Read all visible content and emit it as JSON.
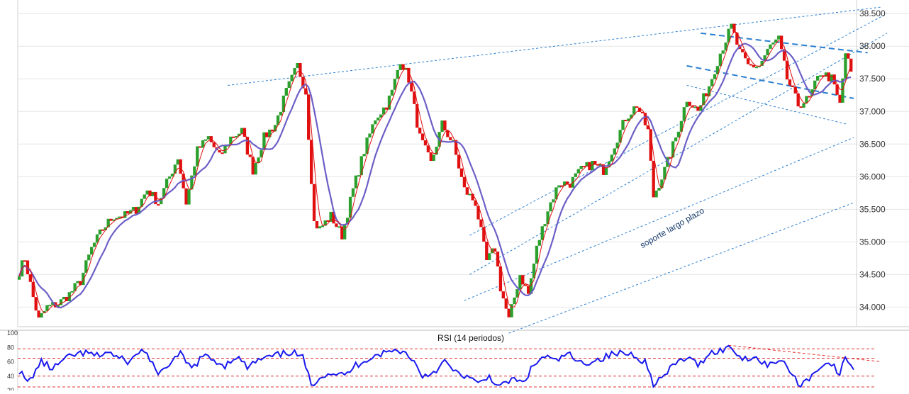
{
  "chart_data": [
    {
      "type": "candlestick",
      "title": "",
      "y_axis": {
        "position": "right",
        "ylim": [
          33.7,
          38.6
        ],
        "tick_labels": [
          "34.000",
          "34.500",
          "35.000",
          "35.500",
          "36.000",
          "36.500",
          "37.000",
          "37.500",
          "38.000",
          "38.500"
        ],
        "tick_values": [
          34.0,
          34.5,
          35.0,
          35.5,
          36.0,
          36.5,
          37.0,
          37.5,
          38.0,
          38.5
        ]
      },
      "grid": "horizontal",
      "price_anchors": [
        {
          "i": 0,
          "c": 34.55
        },
        {
          "i": 2,
          "c": 34.75
        },
        {
          "i": 5,
          "c": 34.15
        },
        {
          "i": 7,
          "c": 33.8
        },
        {
          "i": 10,
          "c": 34.0
        },
        {
          "i": 14,
          "c": 34.05
        },
        {
          "i": 18,
          "c": 34.2
        },
        {
          "i": 22,
          "c": 34.4
        },
        {
          "i": 26,
          "c": 34.9
        },
        {
          "i": 30,
          "c": 35.2
        },
        {
          "i": 34,
          "c": 35.4
        },
        {
          "i": 38,
          "c": 35.4
        },
        {
          "i": 42,
          "c": 35.5
        },
        {
          "i": 46,
          "c": 35.8
        },
        {
          "i": 50,
          "c": 35.6
        },
        {
          "i": 54,
          "c": 36.0
        },
        {
          "i": 57,
          "c": 36.3
        },
        {
          "i": 60,
          "c": 35.6
        },
        {
          "i": 64,
          "c": 36.4
        },
        {
          "i": 68,
          "c": 36.6
        },
        {
          "i": 72,
          "c": 36.3
        },
        {
          "i": 76,
          "c": 36.6
        },
        {
          "i": 80,
          "c": 36.7
        },
        {
          "i": 84,
          "c": 36.1
        },
        {
          "i": 88,
          "c": 36.6
        },
        {
          "i": 92,
          "c": 36.8
        },
        {
          "i": 96,
          "c": 37.3
        },
        {
          "i": 100,
          "c": 37.7
        },
        {
          "i": 103,
          "c": 37.3
        },
        {
          "i": 106,
          "c": 35.3
        },
        {
          "i": 108,
          "c": 35.2
        },
        {
          "i": 112,
          "c": 35.4
        },
        {
          "i": 116,
          "c": 35.1
        },
        {
          "i": 120,
          "c": 35.8
        },
        {
          "i": 124,
          "c": 36.4
        },
        {
          "i": 128,
          "c": 36.9
        },
        {
          "i": 132,
          "c": 37.1
        },
        {
          "i": 134,
          "c": 37.3
        },
        {
          "i": 137,
          "c": 37.8
        },
        {
          "i": 140,
          "c": 37.5
        },
        {
          "i": 144,
          "c": 36.6
        },
        {
          "i": 148,
          "c": 36.2
        },
        {
          "i": 152,
          "c": 36.8
        },
        {
          "i": 156,
          "c": 36.5
        },
        {
          "i": 160,
          "c": 35.8
        },
        {
          "i": 164,
          "c": 35.6
        },
        {
          "i": 168,
          "c": 34.7
        },
        {
          "i": 171,
          "c": 34.9
        },
        {
          "i": 173,
          "c": 34.3
        },
        {
          "i": 176,
          "c": 33.8
        },
        {
          "i": 180,
          "c": 34.5
        },
        {
          "i": 183,
          "c": 34.2
        },
        {
          "i": 186,
          "c": 34.9
        },
        {
          "i": 190,
          "c": 35.5
        },
        {
          "i": 194,
          "c": 35.9
        },
        {
          "i": 198,
          "c": 35.9
        },
        {
          "i": 202,
          "c": 36.1
        },
        {
          "i": 206,
          "c": 36.2
        },
        {
          "i": 210,
          "c": 36.1
        },
        {
          "i": 214,
          "c": 36.5
        },
        {
          "i": 218,
          "c": 36.9
        },
        {
          "i": 222,
          "c": 37.1
        },
        {
          "i": 226,
          "c": 36.7
        },
        {
          "i": 228,
          "c": 35.7
        },
        {
          "i": 232,
          "c": 36.1
        },
        {
          "i": 236,
          "c": 36.6
        },
        {
          "i": 240,
          "c": 37.2
        },
        {
          "i": 244,
          "c": 37.0
        },
        {
          "i": 248,
          "c": 37.4
        },
        {
          "i": 252,
          "c": 37.9
        },
        {
          "i": 256,
          "c": 38.3
        },
        {
          "i": 259,
          "c": 37.9
        },
        {
          "i": 262,
          "c": 37.7
        },
        {
          "i": 266,
          "c": 37.7
        },
        {
          "i": 270,
          "c": 38.0
        },
        {
          "i": 273,
          "c": 38.1
        },
        {
          "i": 276,
          "c": 37.5
        },
        {
          "i": 280,
          "c": 37.1
        },
        {
          "i": 284,
          "c": 37.2
        },
        {
          "i": 288,
          "c": 37.6
        },
        {
          "i": 292,
          "c": 37.5
        },
        {
          "i": 295,
          "c": 37.1
        },
        {
          "i": 297,
          "c": 37.9
        },
        {
          "i": 299,
          "c": 37.6
        }
      ],
      "series": [
        {
          "name": "price",
          "color": "#e01010",
          "up_color": "#2ca02c"
        },
        {
          "name": "fast-average",
          "color": "#e01010"
        },
        {
          "name": "slow-average",
          "color": "#6c5fc7"
        }
      ],
      "annotations": [
        {
          "text": "soporte largo plazo",
          "kind": "trendline-label"
        }
      ],
      "trendlines": [
        {
          "style": "dotted",
          "from": [
            75,
            37.4
          ],
          "to": [
            310,
            38.6
          ]
        },
        {
          "style": "dotted",
          "from": [
            162,
            34.5
          ],
          "to": [
            312,
            38.2
          ]
        },
        {
          "style": "dotted",
          "from": [
            162,
            35.1
          ],
          "to": [
            312,
            38.5
          ]
        },
        {
          "style": "dotted",
          "from": [
            160,
            34.1
          ],
          "to": [
            300,
            36.6
          ]
        },
        {
          "style": "dotted",
          "from": [
            176,
            33.6
          ],
          "to": [
            300,
            35.6
          ]
        },
        {
          "style": "dotted",
          "from": [
            240,
            37.4
          ],
          "to": [
            298,
            36.8
          ]
        },
        {
          "style": "dashed",
          "from": [
            245,
            38.2
          ],
          "to": [
            305,
            37.9
          ]
        },
        {
          "style": "dashed",
          "from": [
            240,
            37.7
          ],
          "to": [
            300,
            37.2
          ]
        }
      ]
    },
    {
      "type": "line",
      "title": "RSI (14 periodos)",
      "y_axis": {
        "position": "left",
        "ylim": [
          20,
          100
        ],
        "tick_labels": [
          "100",
          "80",
          "60",
          "40",
          "20"
        ],
        "tick_values": [
          100,
          80,
          60,
          40,
          20
        ]
      },
      "reference_levels": [
        78,
        65,
        40,
        25
      ],
      "series": [
        {
          "name": "RSI",
          "color": "#1a1aee",
          "anchors": [
            {
              "i": 0,
              "v": 48
            },
            {
              "i": 3,
              "v": 30
            },
            {
              "i": 8,
              "v": 60
            },
            {
              "i": 12,
              "v": 50
            },
            {
              "i": 16,
              "v": 62
            },
            {
              "i": 20,
              "v": 70
            },
            {
              "i": 24,
              "v": 72
            },
            {
              "i": 28,
              "v": 68
            },
            {
              "i": 32,
              "v": 74
            },
            {
              "i": 36,
              "v": 64
            },
            {
              "i": 40,
              "v": 60
            },
            {
              "i": 44,
              "v": 78
            },
            {
              "i": 48,
              "v": 60
            },
            {
              "i": 50,
              "v": 38
            },
            {
              "i": 54,
              "v": 58
            },
            {
              "i": 58,
              "v": 70
            },
            {
              "i": 62,
              "v": 50
            },
            {
              "i": 66,
              "v": 68
            },
            {
              "i": 70,
              "v": 62
            },
            {
              "i": 74,
              "v": 55
            },
            {
              "i": 78,
              "v": 68
            },
            {
              "i": 82,
              "v": 52
            },
            {
              "i": 86,
              "v": 62
            },
            {
              "i": 90,
              "v": 66
            },
            {
              "i": 94,
              "v": 70
            },
            {
              "i": 98,
              "v": 74
            },
            {
              "i": 102,
              "v": 65
            },
            {
              "i": 105,
              "v": 28
            },
            {
              "i": 109,
              "v": 42
            },
            {
              "i": 113,
              "v": 45
            },
            {
              "i": 117,
              "v": 40
            },
            {
              "i": 121,
              "v": 55
            },
            {
              "i": 125,
              "v": 64
            },
            {
              "i": 129,
              "v": 70
            },
            {
              "i": 133,
              "v": 74
            },
            {
              "i": 137,
              "v": 76
            },
            {
              "i": 141,
              "v": 66
            },
            {
              "i": 145,
              "v": 40
            },
            {
              "i": 149,
              "v": 46
            },
            {
              "i": 153,
              "v": 60
            },
            {
              "i": 157,
              "v": 44
            },
            {
              "i": 161,
              "v": 40
            },
            {
              "i": 165,
              "v": 28
            },
            {
              "i": 169,
              "v": 40
            },
            {
              "i": 173,
              "v": 24
            },
            {
              "i": 177,
              "v": 36
            },
            {
              "i": 181,
              "v": 30
            },
            {
              "i": 185,
              "v": 55
            },
            {
              "i": 189,
              "v": 68
            },
            {
              "i": 193,
              "v": 60
            },
            {
              "i": 197,
              "v": 72
            },
            {
              "i": 201,
              "v": 58
            },
            {
              "i": 205,
              "v": 60
            },
            {
              "i": 209,
              "v": 64
            },
            {
              "i": 213,
              "v": 70
            },
            {
              "i": 217,
              "v": 72
            },
            {
              "i": 221,
              "v": 70
            },
            {
              "i": 225,
              "v": 60
            },
            {
              "i": 228,
              "v": 30
            },
            {
              "i": 232,
              "v": 40
            },
            {
              "i": 236,
              "v": 58
            },
            {
              "i": 240,
              "v": 66
            },
            {
              "i": 244,
              "v": 55
            },
            {
              "i": 248,
              "v": 72
            },
            {
              "i": 252,
              "v": 76
            },
            {
              "i": 256,
              "v": 80
            },
            {
              "i": 260,
              "v": 64
            },
            {
              "i": 264,
              "v": 68
            },
            {
              "i": 268,
              "v": 56
            },
            {
              "i": 272,
              "v": 62
            },
            {
              "i": 276,
              "v": 55
            },
            {
              "i": 280,
              "v": 28
            },
            {
              "i": 284,
              "v": 36
            },
            {
              "i": 288,
              "v": 55
            },
            {
              "i": 292,
              "v": 58
            },
            {
              "i": 295,
              "v": 40
            },
            {
              "i": 297,
              "v": 68
            },
            {
              "i": 300,
              "v": 50
            }
          ]
        }
      ],
      "trendlines": [
        {
          "style": "dashed",
          "from": [
            255,
            83
          ],
          "to": [
            310,
            60
          ]
        }
      ]
    }
  ]
}
